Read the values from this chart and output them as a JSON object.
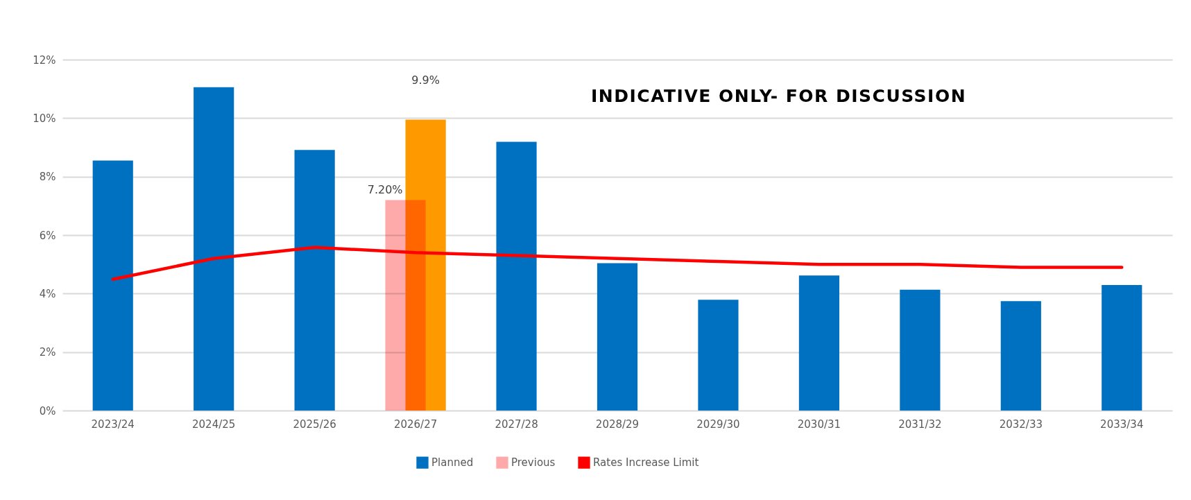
{
  "chart_data": {
    "type": "bar",
    "categories": [
      "2023/24",
      "2024/25",
      "2025/26",
      "2026/27",
      "2027/28",
      "2028/29",
      "2029/30",
      "2030/31",
      "2031/32",
      "2032/33",
      "2033/34"
    ],
    "series": [
      {
        "name": "Planned",
        "color": "#0070c0",
        "colors": [
          "#0070c0",
          "#0070c0",
          "#0070c0",
          "#ff9900",
          "#0070c0",
          "#0070c0",
          "#0070c0",
          "#0070c0",
          "#0070c0",
          "#0070c0",
          "#0070c0"
        ],
        "values": [
          8.55,
          11.06,
          8.91,
          9.95,
          9.19,
          5.04,
          3.79,
          4.62,
          4.13,
          3.74,
          4.29
        ],
        "value_labels": [
          null,
          null,
          null,
          "9.9%",
          null,
          null,
          null,
          null,
          null,
          null,
          null
        ]
      },
      {
        "name": "Previous",
        "color": "#ffaaaa",
        "values": [
          null,
          null,
          null,
          7.2,
          null,
          null,
          null,
          null,
          null,
          null,
          null
        ],
        "value_labels": [
          null,
          null,
          null,
          "7.20%",
          null,
          null,
          null,
          null,
          null,
          null,
          null
        ]
      },
      {
        "name": "Rates Increase Limit",
        "type": "line",
        "color": "#ff0000",
        "values": [
          4.49,
          5.2,
          5.58,
          5.4,
          5.3,
          5.2,
          5.1,
          5.0,
          5.0,
          4.9,
          4.9
        ]
      }
    ],
    "ylim": [
      0,
      12
    ],
    "yticks": [
      {
        "value": 0,
        "label": "0%"
      },
      {
        "value": 2,
        "label": "2%"
      },
      {
        "value": 4,
        "label": "4%"
      },
      {
        "value": 6,
        "label": "6%"
      },
      {
        "value": 8,
        "label": "8%"
      },
      {
        "value": 10,
        "label": "10%"
      },
      {
        "value": 12,
        "label": "12%"
      }
    ],
    "grid": "y",
    "legend": "bottom",
    "line_style": "solid",
    "marker": "none",
    "annotations": [
      "INDICATIVE ONLY- FOR DISCUSSION"
    ]
  }
}
